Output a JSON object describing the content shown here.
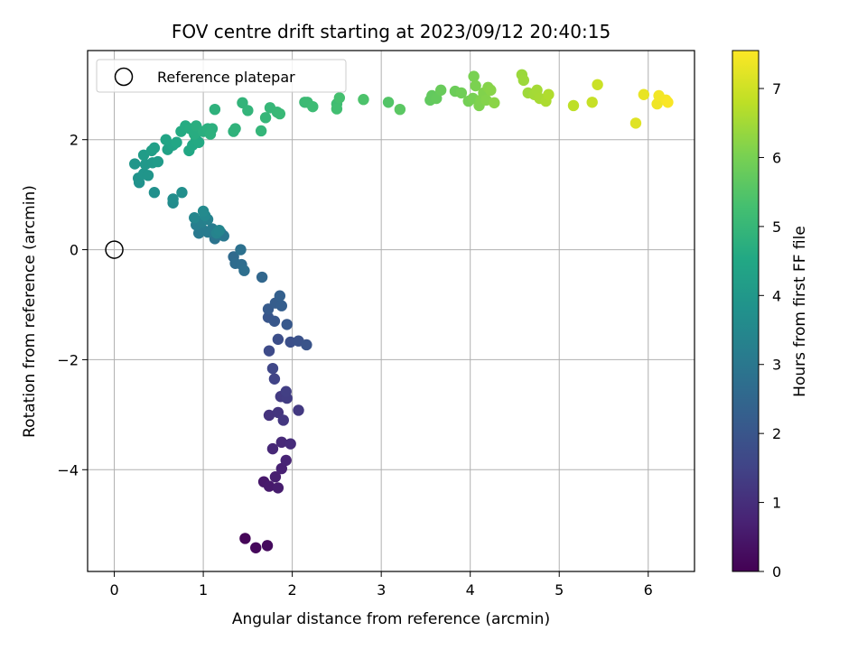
{
  "chart_data": {
    "type": "scatter",
    "title": "FOV centre drift starting at 2023/09/12 20:40:15",
    "xlabel": "Angular distance from reference (arcmin)",
    "ylabel": "Rotation from reference (arcmin)",
    "xlim": [
      -0.3,
      6.52
    ],
    "ylim": [
      -5.85,
      3.62
    ],
    "xticks": [
      0,
      1,
      2,
      3,
      4,
      5,
      6
    ],
    "yticks": [
      -4,
      -2,
      0,
      2
    ],
    "xtick_labels": [
      "0",
      "1",
      "2",
      "3",
      "4",
      "5",
      "6"
    ],
    "ytick_labels": [
      "−4",
      "−2",
      "0",
      "2"
    ],
    "grid": true,
    "legend": {
      "position": "top-left",
      "entries": [
        "Reference platepar"
      ]
    },
    "colorbar": {
      "label": "Hours from first FF file",
      "range": [
        0,
        7.55
      ],
      "ticks": [
        0,
        1,
        2,
        3,
        4,
        5,
        6,
        7
      ],
      "tick_labels": [
        "0",
        "1",
        "2",
        "3",
        "4",
        "5",
        "6",
        "7"
      ],
      "colormap": "viridis"
    },
    "reference_point": {
      "x": 0,
      "y": 0
    },
    "points": [
      {
        "x": 1.47,
        "y": -5.25,
        "t": 0.1
      },
      {
        "x": 1.59,
        "y": -5.42,
        "t": 0.15
      },
      {
        "x": 1.72,
        "y": -5.38,
        "t": 0.2
      },
      {
        "x": 1.68,
        "y": -4.22,
        "t": 0.5
      },
      {
        "x": 1.74,
        "y": -4.3,
        "t": 0.55
      },
      {
        "x": 1.84,
        "y": -4.33,
        "t": 0.6
      },
      {
        "x": 1.81,
        "y": -4.13,
        "t": 0.65
      },
      {
        "x": 1.88,
        "y": -3.98,
        "t": 0.7
      },
      {
        "x": 1.93,
        "y": -3.83,
        "t": 0.75
      },
      {
        "x": 1.78,
        "y": -3.62,
        "t": 0.85
      },
      {
        "x": 1.88,
        "y": -3.5,
        "t": 0.9
      },
      {
        "x": 1.98,
        "y": -3.53,
        "t": 0.95
      },
      {
        "x": 1.74,
        "y": -3.01,
        "t": 1.1
      },
      {
        "x": 1.84,
        "y": -2.96,
        "t": 1.15
      },
      {
        "x": 1.9,
        "y": -3.1,
        "t": 1.2
      },
      {
        "x": 2.07,
        "y": -2.92,
        "t": 1.25
      },
      {
        "x": 1.87,
        "y": -2.67,
        "t": 1.3
      },
      {
        "x": 1.94,
        "y": -2.7,
        "t": 1.35
      },
      {
        "x": 1.93,
        "y": -2.58,
        "t": 1.4
      },
      {
        "x": 1.8,
        "y": -2.35,
        "t": 1.5
      },
      {
        "x": 1.78,
        "y": -2.16,
        "t": 1.6
      },
      {
        "x": 1.74,
        "y": -1.84,
        "t": 1.7
      },
      {
        "x": 1.84,
        "y": -1.63,
        "t": 1.8
      },
      {
        "x": 1.98,
        "y": -1.68,
        "t": 1.85
      },
      {
        "x": 2.07,
        "y": -1.66,
        "t": 1.9
      },
      {
        "x": 2.16,
        "y": -1.73,
        "t": 1.95
      },
      {
        "x": 1.73,
        "y": -1.23,
        "t": 2.0
      },
      {
        "x": 1.8,
        "y": -1.3,
        "t": 2.05
      },
      {
        "x": 1.94,
        "y": -1.36,
        "t": 2.1
      },
      {
        "x": 1.73,
        "y": -1.08,
        "t": 2.15
      },
      {
        "x": 1.81,
        "y": -0.97,
        "t": 2.2
      },
      {
        "x": 1.88,
        "y": -1.02,
        "t": 2.25
      },
      {
        "x": 1.86,
        "y": -0.84,
        "t": 2.3
      },
      {
        "x": 1.66,
        "y": -0.5,
        "t": 2.5
      },
      {
        "x": 1.34,
        "y": -0.13,
        "t": 2.6
      },
      {
        "x": 1.36,
        "y": -0.25,
        "t": 2.65
      },
      {
        "x": 1.43,
        "y": -0.27,
        "t": 2.7
      },
      {
        "x": 1.46,
        "y": -0.38,
        "t": 2.75
      },
      {
        "x": 1.42,
        "y": 0.0,
        "t": 2.8
      },
      {
        "x": 1.13,
        "y": 0.2,
        "t": 2.9
      },
      {
        "x": 1.2,
        "y": 0.3,
        "t": 2.95
      },
      {
        "x": 1.23,
        "y": 0.25,
        "t": 3.0
      },
      {
        "x": 0.95,
        "y": 0.3,
        "t": 3.05
      },
      {
        "x": 1.0,
        "y": 0.35,
        "t": 3.1
      },
      {
        "x": 1.05,
        "y": 0.32,
        "t": 3.12
      },
      {
        "x": 1.1,
        "y": 0.38,
        "t": 3.15
      },
      {
        "x": 0.92,
        "y": 0.45,
        "t": 3.2
      },
      {
        "x": 0.98,
        "y": 0.5,
        "t": 3.25
      },
      {
        "x": 1.05,
        "y": 0.55,
        "t": 3.3
      },
      {
        "x": 1.15,
        "y": 0.3,
        "t": 3.35
      },
      {
        "x": 1.18,
        "y": 0.35,
        "t": 3.4
      },
      {
        "x": 0.9,
        "y": 0.58,
        "t": 3.45
      },
      {
        "x": 1.02,
        "y": 0.62,
        "t": 3.5
      },
      {
        "x": 1.0,
        "y": 0.7,
        "t": 3.55
      },
      {
        "x": 0.66,
        "y": 0.85,
        "t": 3.6
      },
      {
        "x": 0.66,
        "y": 0.92,
        "t": 3.65
      },
      {
        "x": 0.76,
        "y": 1.04,
        "t": 3.7
      },
      {
        "x": 0.45,
        "y": 1.04,
        "t": 3.75
      },
      {
        "x": 0.28,
        "y": 1.22,
        "t": 3.8
      },
      {
        "x": 0.27,
        "y": 1.3,
        "t": 3.85
      },
      {
        "x": 0.33,
        "y": 1.38,
        "t": 3.9
      },
      {
        "x": 0.38,
        "y": 1.35,
        "t": 3.92
      },
      {
        "x": 0.23,
        "y": 1.56,
        "t": 3.95
      },
      {
        "x": 0.35,
        "y": 1.55,
        "t": 4.0
      },
      {
        "x": 0.43,
        "y": 1.58,
        "t": 4.05
      },
      {
        "x": 0.49,
        "y": 1.6,
        "t": 4.1
      },
      {
        "x": 0.33,
        "y": 1.72,
        "t": 4.15
      },
      {
        "x": 0.42,
        "y": 1.8,
        "t": 4.2
      },
      {
        "x": 0.45,
        "y": 1.85,
        "t": 4.25
      },
      {
        "x": 0.6,
        "y": 1.82,
        "t": 4.3
      },
      {
        "x": 0.66,
        "y": 1.9,
        "t": 4.35
      },
      {
        "x": 0.58,
        "y": 2.0,
        "t": 4.4
      },
      {
        "x": 0.7,
        "y": 1.95,
        "t": 4.45
      },
      {
        "x": 0.84,
        "y": 1.8,
        "t": 4.5
      },
      {
        "x": 0.88,
        "y": 1.9,
        "t": 4.52
      },
      {
        "x": 0.92,
        "y": 2.0,
        "t": 4.55
      },
      {
        "x": 0.95,
        "y": 1.95,
        "t": 4.57
      },
      {
        "x": 0.75,
        "y": 2.15,
        "t": 4.6
      },
      {
        "x": 0.8,
        "y": 2.25,
        "t": 4.62
      },
      {
        "x": 0.85,
        "y": 2.2,
        "t": 4.65
      },
      {
        "x": 0.9,
        "y": 2.1,
        "t": 4.67
      },
      {
        "x": 0.92,
        "y": 2.25,
        "t": 4.7
      },
      {
        "x": 1.0,
        "y": 2.15,
        "t": 4.72
      },
      {
        "x": 1.05,
        "y": 2.2,
        "t": 4.75
      },
      {
        "x": 1.1,
        "y": 2.2,
        "t": 4.77
      },
      {
        "x": 1.08,
        "y": 2.1,
        "t": 4.8
      },
      {
        "x": 1.13,
        "y": 2.55,
        "t": 4.82
      },
      {
        "x": 1.34,
        "y": 2.15,
        "t": 4.85
      },
      {
        "x": 1.36,
        "y": 2.2,
        "t": 4.87
      },
      {
        "x": 1.44,
        "y": 2.67,
        "t": 4.9
      },
      {
        "x": 1.5,
        "y": 2.53,
        "t": 4.92
      },
      {
        "x": 1.65,
        "y": 2.16,
        "t": 4.95
      },
      {
        "x": 1.7,
        "y": 2.4,
        "t": 4.97
      },
      {
        "x": 1.75,
        "y": 2.58,
        "t": 5.0
      },
      {
        "x": 1.83,
        "y": 2.5,
        "t": 5.02
      },
      {
        "x": 1.86,
        "y": 2.47,
        "t": 5.05
      },
      {
        "x": 2.14,
        "y": 2.68,
        "t": 5.1
      },
      {
        "x": 2.17,
        "y": 2.68,
        "t": 5.12
      },
      {
        "x": 2.23,
        "y": 2.6,
        "t": 5.15
      },
      {
        "x": 2.5,
        "y": 2.65,
        "t": 5.2
      },
      {
        "x": 2.5,
        "y": 2.56,
        "t": 5.25
      },
      {
        "x": 2.53,
        "y": 2.76,
        "t": 5.3
      },
      {
        "x": 2.8,
        "y": 2.73,
        "t": 5.4
      },
      {
        "x": 3.08,
        "y": 2.68,
        "t": 5.5
      },
      {
        "x": 3.21,
        "y": 2.55,
        "t": 5.6
      },
      {
        "x": 3.55,
        "y": 2.72,
        "t": 5.7
      },
      {
        "x": 3.57,
        "y": 2.8,
        "t": 5.72
      },
      {
        "x": 3.62,
        "y": 2.75,
        "t": 5.75
      },
      {
        "x": 3.67,
        "y": 2.9,
        "t": 5.8
      },
      {
        "x": 3.83,
        "y": 2.88,
        "t": 5.85
      },
      {
        "x": 3.9,
        "y": 2.85,
        "t": 5.9
      },
      {
        "x": 3.98,
        "y": 2.7,
        "t": 5.95
      },
      {
        "x": 4.03,
        "y": 2.75,
        "t": 6.0
      },
      {
        "x": 4.04,
        "y": 3.15,
        "t": 6.02
      },
      {
        "x": 4.06,
        "y": 2.98,
        "t": 6.05
      },
      {
        "x": 4.1,
        "y": 2.62,
        "t": 6.07
      },
      {
        "x": 4.12,
        "y": 2.72,
        "t": 6.1
      },
      {
        "x": 4.15,
        "y": 2.85,
        "t": 6.12
      },
      {
        "x": 4.18,
        "y": 2.72,
        "t": 6.15
      },
      {
        "x": 4.2,
        "y": 2.95,
        "t": 6.17
      },
      {
        "x": 4.23,
        "y": 2.9,
        "t": 6.2
      },
      {
        "x": 4.27,
        "y": 2.67,
        "t": 6.22
      },
      {
        "x": 4.58,
        "y": 3.18,
        "t": 6.4
      },
      {
        "x": 4.6,
        "y": 3.08,
        "t": 6.42
      },
      {
        "x": 4.65,
        "y": 2.85,
        "t": 6.45
      },
      {
        "x": 4.72,
        "y": 2.82,
        "t": 6.5
      },
      {
        "x": 4.75,
        "y": 2.9,
        "t": 6.52
      },
      {
        "x": 4.78,
        "y": 2.75,
        "t": 6.55
      },
      {
        "x": 4.85,
        "y": 2.7,
        "t": 6.6
      },
      {
        "x": 4.88,
        "y": 2.82,
        "t": 6.65
      },
      {
        "x": 5.16,
        "y": 2.62,
        "t": 6.8
      },
      {
        "x": 5.37,
        "y": 2.68,
        "t": 6.9
      },
      {
        "x": 5.43,
        "y": 3.0,
        "t": 6.95
      },
      {
        "x": 5.86,
        "y": 2.3,
        "t": 7.2
      },
      {
        "x": 5.95,
        "y": 2.82,
        "t": 7.3
      },
      {
        "x": 6.1,
        "y": 2.65,
        "t": 7.38
      },
      {
        "x": 6.12,
        "y": 2.8,
        "t": 7.42
      },
      {
        "x": 6.2,
        "y": 2.72,
        "t": 7.46
      },
      {
        "x": 6.22,
        "y": 2.68,
        "t": 7.5
      }
    ]
  }
}
